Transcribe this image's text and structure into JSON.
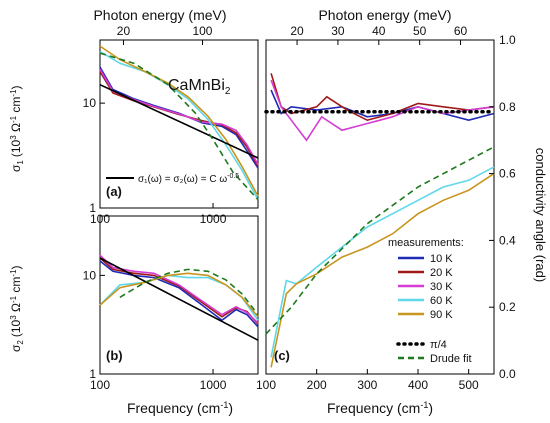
{
  "figure": {
    "top_axis_label": "Photon energy (meV)",
    "bottom_axis_label": "Frequency (cm",
    "bottom_axis_label_sup": "-1",
    "bottom_axis_label_end": ")",
    "right_axis_label": "conductivity angle (rad)"
  },
  "chart_data": [
    {
      "panel": "(a)",
      "type": "line",
      "title": "CaMnBi",
      "title_sub": "2",
      "xscale": "log",
      "yscale": "log",
      "xlim": [
        100,
        2500
      ],
      "ylim": [
        1,
        40
      ],
      "ylabel_main": "σ",
      "ylabel_sub": "1",
      "ylabel_paren": "(10",
      "ylabel_sup1": "3",
      "ylabel_mid": " Ω",
      "ylabel_sup2": "-1",
      "ylabel_cm": " cm",
      "ylabel_sup3": "-1",
      "ylabel_close": ")",
      "x_ticks": [
        "100",
        "1000"
      ],
      "y_ticks": [
        "1",
        "10"
      ],
      "top_ticks": [
        "20",
        "100"
      ],
      "legend_text": "σ₁(ω) = σ₂(ω) = C ω",
      "legend_sup": "-0.5",
      "series": [
        {
          "color": "#1f2bb5",
          "points": [
            [
              100,
              22
            ],
            [
              130,
              13.5
            ],
            [
              200,
              11
            ],
            [
              300,
              9.5
            ],
            [
              500,
              8
            ],
            [
              800,
              6.5
            ],
            [
              1200,
              6
            ],
            [
              1600,
              5
            ],
            [
              2000,
              3.5
            ],
            [
              2500,
              2.4
            ]
          ]
        },
        {
          "color": "#a01a1a",
          "points": [
            [
              100,
              20
            ],
            [
              130,
              12.5
            ],
            [
              200,
              10.5
            ],
            [
              300,
              9.2
            ],
            [
              500,
              7.8
            ],
            [
              800,
              6.8
            ],
            [
              1200,
              6.2
            ],
            [
              1600,
              5.2
            ],
            [
              2000,
              3.8
            ],
            [
              2500,
              2.5
            ]
          ]
        },
        {
          "color": "#d43cd4",
          "points": [
            [
              100,
              21
            ],
            [
              130,
              13
            ],
            [
              200,
              10.8
            ],
            [
              300,
              9.3
            ],
            [
              500,
              7.9
            ],
            [
              800,
              6.6
            ],
            [
              1200,
              6.3
            ],
            [
              1600,
              5.5
            ],
            [
              2000,
              4
            ],
            [
              2500,
              2.6
            ]
          ]
        },
        {
          "color": "#5fd8ea",
          "points": [
            [
              100,
              31
            ],
            [
              150,
              24
            ],
            [
              250,
              20
            ],
            [
              400,
              15
            ],
            [
              600,
              11
            ],
            [
              900,
              7
            ],
            [
              1300,
              4
            ],
            [
              1800,
              2.3
            ],
            [
              2500,
              1.2
            ]
          ]
        },
        {
          "color": "#c8961e",
          "points": [
            [
              100,
              35
            ],
            [
              150,
              26
            ],
            [
              250,
              20
            ],
            [
              400,
              15.5
            ],
            [
              600,
              11.5
            ],
            [
              900,
              7.5
            ],
            [
              1300,
              4.5
            ],
            [
              1800,
              2.5
            ],
            [
              2500,
              1.3
            ]
          ]
        },
        {
          "color": "#000000",
          "points": [
            [
              100,
              15
            ],
            [
              2500,
              3
            ]
          ]
        },
        {
          "color": "#1e7a1e",
          "dashed": true,
          "points": [
            [
              100,
              30
            ],
            [
              200,
              24
            ],
            [
              400,
              15
            ],
            [
              700,
              8
            ],
            [
              1000,
              4.5
            ],
            [
              1500,
              2.2
            ],
            [
              2500,
              1.2
            ]
          ]
        }
      ]
    },
    {
      "panel": "(b)",
      "type": "line",
      "xscale": "log",
      "yscale": "log",
      "xlim": [
        100,
        2500
      ],
      "ylim": [
        1,
        40
      ],
      "ylabel_main": "σ",
      "ylabel_sub": "2",
      "ylabel_paren": "(10",
      "ylabel_sup1": "3",
      "ylabel_mid": " Ω",
      "ylabel_sup2": "-1",
      "ylabel_cm": " cm",
      "ylabel_sup3": "-1",
      "ylabel_close": ")",
      "x_ticks": [
        "100",
        "1000"
      ],
      "y_ticks": [
        "1",
        "10"
      ],
      "series": [
        {
          "color": "#1f2bb5",
          "points": [
            [
              100,
              14
            ],
            [
              130,
              11
            ],
            [
              200,
              10
            ],
            [
              300,
              9.5
            ],
            [
              500,
              7.5
            ],
            [
              800,
              5
            ],
            [
              1200,
              3.5
            ],
            [
              1600,
              4.5
            ],
            [
              2000,
              4
            ],
            [
              2500,
              3
            ]
          ]
        },
        {
          "color": "#a01a1a",
          "points": [
            [
              100,
              15
            ],
            [
              130,
              11.5
            ],
            [
              200,
              10.5
            ],
            [
              300,
              10
            ],
            [
              500,
              7.8
            ],
            [
              800,
              5.3
            ],
            [
              1200,
              3.8
            ],
            [
              1600,
              4.7
            ],
            [
              2000,
              4.3
            ],
            [
              2500,
              3.2
            ]
          ]
        },
        {
          "color": "#d43cd4",
          "points": [
            [
              100,
              16
            ],
            [
              130,
              12
            ],
            [
              200,
              11
            ],
            [
              300,
              10.5
            ],
            [
              500,
              8
            ],
            [
              800,
              5.5
            ],
            [
              1200,
              4
            ],
            [
              1600,
              4.8
            ],
            [
              2000,
              4.2
            ],
            [
              2500,
              3.3
            ]
          ]
        },
        {
          "color": "#5fd8ea",
          "points": [
            [
              100,
              5
            ],
            [
              150,
              8
            ],
            [
              250,
              8.5
            ],
            [
              400,
              10
            ],
            [
              600,
              9.5
            ],
            [
              900,
              9.5
            ],
            [
              1300,
              8
            ],
            [
              1800,
              6
            ],
            [
              2500,
              3.5
            ]
          ]
        },
        {
          "color": "#c8961e",
          "points": [
            [
              100,
              5
            ],
            [
              150,
              7.5
            ],
            [
              250,
              8.5
            ],
            [
              400,
              10
            ],
            [
              600,
              10.5
            ],
            [
              900,
              10
            ],
            [
              1300,
              8
            ],
            [
              1800,
              6
            ],
            [
              2500,
              3.8
            ]
          ]
        },
        {
          "color": "#000000",
          "points": [
            [
              100,
              15
            ],
            [
              2500,
              2.2
            ]
          ]
        },
        {
          "color": "#1e7a1e",
          "dashed": true,
          "points": [
            [
              150,
              6
            ],
            [
              250,
              8.5
            ],
            [
              400,
              10.5
            ],
            [
              600,
              11.5
            ],
            [
              900,
              11
            ],
            [
              1300,
              9
            ],
            [
              1800,
              6.5
            ],
            [
              2500,
              4
            ]
          ]
        }
      ]
    },
    {
      "panel": "(c)",
      "type": "line",
      "xscale": "linear",
      "yscale": "linear",
      "xlim": [
        100,
        550
      ],
      "ylim": [
        0,
        1.0
      ],
      "x_ticks": [
        "100",
        "200",
        "300",
        "400",
        "500"
      ],
      "y_ticks": [
        "0.0",
        "0.2",
        "0.4",
        "0.6",
        "0.8",
        "1.0"
      ],
      "top_ticks": [
        "20",
        "30",
        "40",
        "50",
        "60"
      ],
      "legend_title": "measurements:",
      "series": [
        {
          "name": "10 K",
          "color": "#1f2bb5",
          "points": [
            [
              110,
              0.85
            ],
            [
              130,
              0.78
            ],
            [
              150,
              0.8
            ],
            [
              200,
              0.79
            ],
            [
              250,
              0.8
            ],
            [
              300,
              0.77
            ],
            [
              350,
              0.78
            ],
            [
              400,
              0.8
            ],
            [
              450,
              0.78
            ],
            [
              500,
              0.76
            ],
            [
              550,
              0.78
            ]
          ]
        },
        {
          "name": "20 K",
          "color": "#a01a1a",
          "points": [
            [
              110,
              0.9
            ],
            [
              130,
              0.8
            ],
            [
              150,
              0.78
            ],
            [
              200,
              0.8
            ],
            [
              220,
              0.83
            ],
            [
              260,
              0.79
            ],
            [
              300,
              0.76
            ],
            [
              350,
              0.78
            ],
            [
              400,
              0.81
            ],
            [
              450,
              0.8
            ],
            [
              500,
              0.79
            ],
            [
              550,
              0.8
            ]
          ]
        },
        {
          "name": "30 K",
          "color": "#d43cd4",
          "points": [
            [
              110,
              0.88
            ],
            [
              130,
              0.8
            ],
            [
              150,
              0.76
            ],
            [
              180,
              0.7
            ],
            [
              210,
              0.77
            ],
            [
              250,
              0.73
            ],
            [
              300,
              0.75
            ],
            [
              350,
              0.77
            ],
            [
              400,
              0.8
            ],
            [
              450,
              0.78
            ],
            [
              500,
              0.79
            ],
            [
              550,
              0.8
            ]
          ]
        },
        {
          "name": "60 K",
          "color": "#5fd8ea",
          "points": [
            [
              110,
              0.05
            ],
            [
              140,
              0.28
            ],
            [
              160,
              0.27
            ],
            [
              200,
              0.32
            ],
            [
              250,
              0.38
            ],
            [
              300,
              0.44
            ],
            [
              350,
              0.48
            ],
            [
              400,
              0.52
            ],
            [
              450,
              0.56
            ],
            [
              500,
              0.58
            ],
            [
              550,
              0.62
            ]
          ]
        },
        {
          "name": "90 K",
          "color": "#c8961e",
          "points": [
            [
              110,
              0.02
            ],
            [
              140,
              0.24
            ],
            [
              160,
              0.27
            ],
            [
              200,
              0.3
            ],
            [
              250,
              0.35
            ],
            [
              300,
              0.38
            ],
            [
              350,
              0.42
            ],
            [
              400,
              0.48
            ],
            [
              450,
              0.52
            ],
            [
              500,
              0.55
            ],
            [
              550,
              0.6
            ]
          ]
        },
        {
          "name": "π/4",
          "color": "#000000",
          "dotted": true,
          "points": [
            [
              100,
              0.785
            ],
            [
              550,
              0.785
            ]
          ]
        },
        {
          "name": "Drude fit",
          "color": "#1e7a1e",
          "dashed": true,
          "points": [
            [
              100,
              0.12
            ],
            [
              150,
              0.2
            ],
            [
              200,
              0.3
            ],
            [
              300,
              0.45
            ],
            [
              400,
              0.56
            ],
            [
              500,
              0.64
            ],
            [
              550,
              0.68
            ]
          ]
        }
      ]
    }
  ]
}
